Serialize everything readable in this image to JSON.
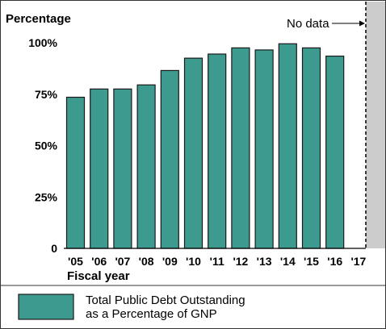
{
  "chart_data": {
    "type": "bar",
    "ylabel": "Percentage",
    "xlabel": "Fiscal year",
    "categories": [
      "'05",
      "'06",
      "'07",
      "'08",
      "'09",
      "'10",
      "'11",
      "'12",
      "'13",
      "'14",
      "'15",
      "'16",
      "'17"
    ],
    "series": [
      {
        "name": "Total Public Debt Outstanding as a Percentage of GNP",
        "values": [
          73.5,
          77.5,
          77.5,
          79.5,
          86.5,
          92.5,
          94.5,
          97.5,
          96.5,
          99.5,
          97.5,
          93.5,
          null
        ]
      }
    ],
    "ylim": [
      0,
      100
    ],
    "yticks": [
      "0",
      "25%",
      "50%",
      "75%",
      "100%"
    ],
    "ytick_values": [
      0,
      25,
      50,
      75,
      100
    ],
    "no_data_label": "No data",
    "legend": {
      "position": "bottom-left",
      "lines": [
        "Total Public Debt Outstanding",
        "as a Percentage of GNP"
      ]
    },
    "grid": false,
    "colors": {
      "bar": "#3d9a8e",
      "bar_edge": "#1a1a1a",
      "no_data_region": "#cccccc"
    }
  }
}
